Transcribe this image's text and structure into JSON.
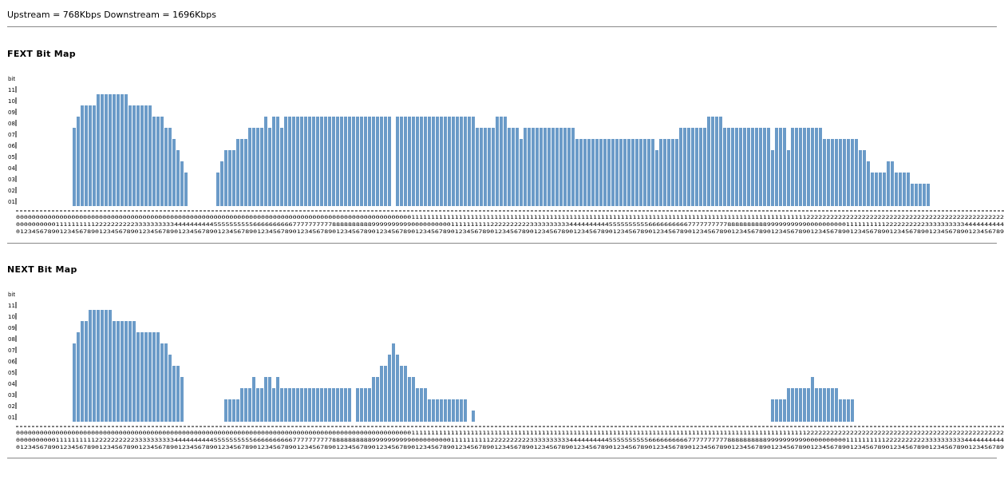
{
  "header": {
    "rate_text": "Upstream = 768Kbps Downstream = 1696Kbps"
  },
  "fext": {
    "title": "FEXT Bit Map"
  },
  "next": {
    "title": "NEXT Bit Map"
  },
  "colors": {
    "bar": "#6b9bc8",
    "axis_text": "#000000"
  },
  "chart_data": [
    {
      "type": "bar",
      "title": "FEXT Bit Map",
      "ylabel": "bit",
      "ytick_labels": [
        "01",
        "02",
        "03",
        "04",
        "05",
        "06",
        "07",
        "08",
        "09",
        "10",
        "11"
      ],
      "ylim": [
        0,
        11
      ],
      "x": "tone index 0-249",
      "values": [
        0,
        0,
        0,
        0,
        0,
        0,
        0,
        0,
        7,
        8,
        9,
        9,
        9,
        9,
        10,
        10,
        10,
        10,
        10,
        10,
        10,
        10,
        9,
        9,
        9,
        9,
        9,
        9,
        8,
        8,
        8,
        7,
        7,
        6,
        5,
        4,
        3,
        0,
        0,
        0,
        0,
        0,
        0,
        0,
        3,
        4,
        5,
        5,
        5,
        6,
        6,
        6,
        7,
        7,
        7,
        7,
        8,
        7,
        8,
        8,
        7,
        8,
        8,
        8,
        8,
        8,
        8,
        8,
        8,
        8,
        8,
        8,
        8,
        8,
        8,
        8,
        8,
        8,
        8,
        8,
        8,
        8,
        8,
        8,
        8,
        8,
        8,
        8,
        0,
        8,
        8,
        8,
        8,
        8,
        8,
        8,
        8,
        8,
        8,
        8,
        8,
        8,
        8,
        8,
        8,
        8,
        8,
        8,
        8,
        7,
        7,
        7,
        7,
        7,
        8,
        8,
        8,
        7,
        7,
        7,
        6,
        7,
        7,
        7,
        7,
        7,
        7,
        7,
        7,
        7,
        7,
        7,
        7,
        7,
        6,
        6,
        6,
        6,
        6,
        6,
        6,
        6,
        6,
        6,
        6,
        6,
        6,
        6,
        6,
        6,
        6,
        6,
        6,
        6,
        5,
        6,
        6,
        6,
        6,
        6,
        7,
        7,
        7,
        7,
        7,
        7,
        7,
        8,
        8,
        8,
        8,
        7,
        7,
        7,
        7,
        7,
        7,
        7,
        7,
        7,
        7,
        7,
        7,
        5,
        7,
        7,
        7,
        5,
        7,
        7,
        7,
        7,
        7,
        7,
        7,
        7,
        6,
        6,
        6,
        6,
        6,
        6,
        6,
        6,
        6,
        5,
        5,
        4,
        3,
        3,
        3,
        3,
        4,
        4,
        3,
        3,
        3,
        3,
        2,
        2,
        2,
        2,
        2,
        0,
        0,
        0,
        0,
        0,
        0,
        0,
        0,
        0,
        0,
        0,
        0,
        0,
        0,
        0,
        0,
        0,
        0,
        0,
        0,
        0,
        0,
        0,
        0,
        0,
        0,
        0,
        0,
        0,
        0,
        0,
        0,
        0,
        0,
        0,
        0,
        0,
        0,
        0,
        0,
        0,
        0,
        0,
        0,
        0,
        0,
        0,
        0,
        0,
        0,
        0
      ]
    },
    {
      "type": "bar",
      "title": "NEXT Bit Map",
      "ylabel": "bit",
      "ytick_labels": [
        "01",
        "02",
        "03",
        "04",
        "05",
        "06",
        "07",
        "08",
        "09",
        "10",
        "11"
      ],
      "ylim": [
        0,
        11
      ],
      "x": "tone index 0-249",
      "values": [
        0,
        0,
        0,
        0,
        0,
        0,
        0,
        0,
        7,
        8,
        9,
        9,
        10,
        10,
        10,
        10,
        10,
        10,
        9,
        9,
        9,
        9,
        9,
        9,
        8,
        8,
        8,
        8,
        8,
        8,
        7,
        7,
        6,
        5,
        5,
        4,
        0,
        0,
        0,
        0,
        0,
        0,
        0,
        0,
        0,
        0,
        2,
        2,
        2,
        2,
        3,
        3,
        3,
        4,
        3,
        3,
        4,
        4,
        3,
        4,
        3,
        3,
        3,
        3,
        3,
        3,
        3,
        3,
        3,
        3,
        3,
        3,
        3,
        3,
        3,
        3,
        3,
        3,
        0,
        3,
        3,
        3,
        3,
        4,
        4,
        5,
        5,
        6,
        7,
        6,
        5,
        5,
        4,
        4,
        3,
        3,
        3,
        2,
        2,
        2,
        2,
        2,
        2,
        2,
        2,
        2,
        2,
        0,
        1,
        0,
        0,
        0,
        0,
        0,
        0,
        0,
        0,
        0,
        0,
        0,
        0,
        0,
        0,
        0,
        0,
        0,
        0,
        0,
        0,
        0,
        0,
        0,
        0,
        0,
        0,
        0,
        0,
        0,
        0,
        0,
        0,
        0,
        0,
        0,
        0,
        0,
        0,
        0,
        0,
        0,
        0,
        0,
        0,
        0,
        0,
        0,
        0,
        0,
        0,
        0,
        0,
        0,
        0,
        0,
        0,
        0,
        0,
        0,
        0,
        0,
        0,
        0,
        0,
        0,
        0,
        0,
        0,
        0,
        0,
        0,
        0,
        0,
        0,
        2,
        2,
        2,
        2,
        3,
        3,
        3,
        3,
        3,
        3,
        4,
        3,
        3,
        3,
        3,
        3,
        3,
        2,
        2,
        2,
        2,
        0,
        0,
        0,
        0,
        0,
        0,
        0,
        0,
        0,
        0,
        0,
        0,
        0,
        0,
        0,
        0,
        0,
        0,
        0,
        0,
        0,
        0,
        0,
        0,
        0,
        0,
        0,
        0,
        0,
        0,
        0,
        0,
        0,
        0,
        0,
        0,
        0,
        0,
        0,
        0,
        0,
        0,
        0,
        0,
        0,
        0,
        0,
        0,
        0,
        0,
        0,
        0,
        0,
        0,
        0,
        0,
        0,
        0,
        0,
        0,
        0
      ]
    }
  ]
}
